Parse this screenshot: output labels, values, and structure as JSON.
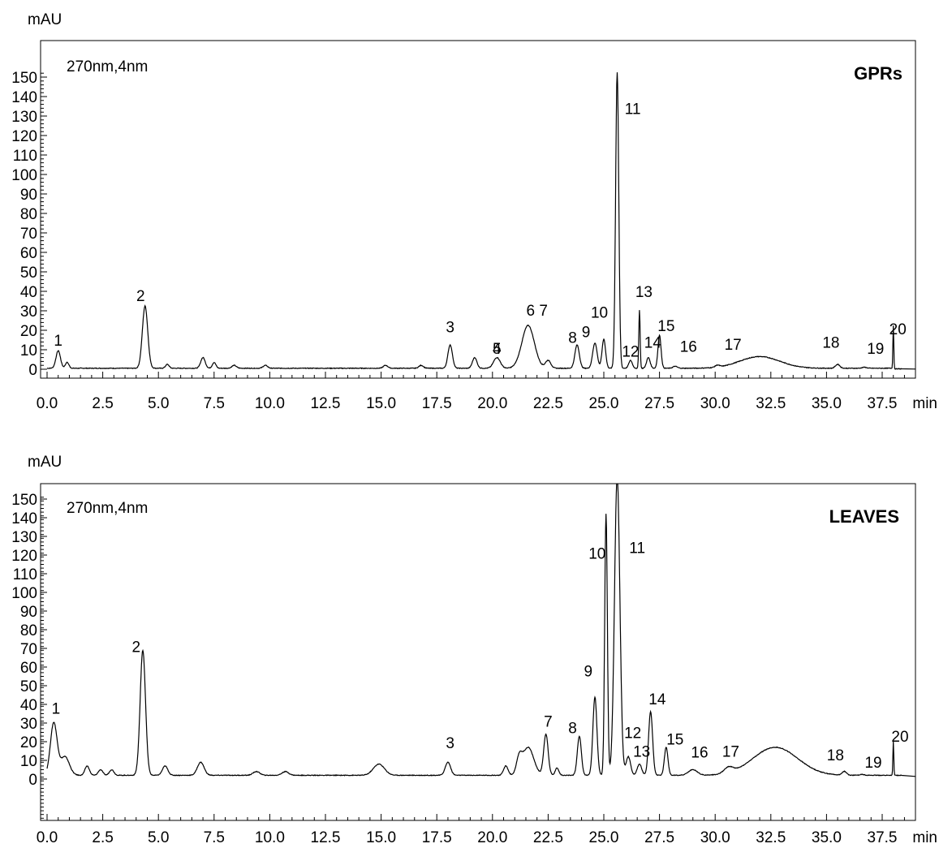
{
  "chart_data": [
    {
      "type": "line",
      "title": "GPRs",
      "annotation": "270nm,4nm",
      "ylabel": "mAU",
      "xlabel": "min",
      "xlim": [
        0,
        39
      ],
      "ylim": [
        0,
        152
      ],
      "grid": false,
      "x_ticks": [
        "0.0",
        "2.5",
        "5.0",
        "7.5",
        "10.0",
        "12.5",
        "15.0",
        "17.5",
        "20.0",
        "22.5",
        "25.0",
        "27.5",
        "30.0",
        "32.5",
        "35.0",
        "37.5"
      ],
      "y_ticks": [
        "0",
        "10",
        "20",
        "30",
        "40",
        "50",
        "60",
        "70",
        "80",
        "90",
        "100",
        "110",
        "120",
        "130",
        "140",
        "150"
      ],
      "baseline": 0.5,
      "peaks": [
        {
          "label": "1",
          "x": 0.5,
          "y": 9,
          "w": 0.1,
          "label_x": 0.5,
          "label_y": 12
        },
        {
          "label": "",
          "x": 0.9,
          "y": 3,
          "w": 0.08
        },
        {
          "label": "2",
          "x": 4.4,
          "y": 32,
          "w": 0.12,
          "label_x": 4.2,
          "label_y": 35
        },
        {
          "label": "",
          "x": 5.4,
          "y": 2,
          "w": 0.08
        },
        {
          "label": "",
          "x": 7.0,
          "y": 5.5,
          "w": 0.1
        },
        {
          "label": "",
          "x": 7.5,
          "y": 3,
          "w": 0.08
        },
        {
          "label": "",
          "x": 8.4,
          "y": 1.5,
          "w": 0.1
        },
        {
          "label": "",
          "x": 9.8,
          "y": 1.5,
          "w": 0.1
        },
        {
          "label": "",
          "x": 15.2,
          "y": 1.5,
          "w": 0.1
        },
        {
          "label": "",
          "x": 16.8,
          "y": 1.5,
          "w": 0.1
        },
        {
          "label": "3",
          "x": 18.1,
          "y": 12,
          "w": 0.1,
          "label_x": 18.1,
          "label_y": 19
        },
        {
          "label": "4",
          "x": 19.2,
          "y": 5.5,
          "w": 0.1,
          "label_x": 20.2,
          "label_y": 8
        },
        {
          "label": "5",
          "x": 20.2,
          "y": 5.5,
          "w": 0.15,
          "label_x": 20.2,
          "label_y": 8
        },
        {
          "label": "6 7",
          "x": 21.6,
          "y": 22,
          "w": 0.28,
          "label_x": 22.0,
          "label_y": 27.5
        },
        {
          "label": "",
          "x": 22.5,
          "y": 4,
          "w": 0.12
        },
        {
          "label": "8",
          "x": 23.8,
          "y": 12,
          "w": 0.1,
          "label_x": 23.6,
          "label_y": 13.5
        },
        {
          "label": "9",
          "x": 24.6,
          "y": 13,
          "w": 0.1,
          "label_x": 24.2,
          "label_y": 16.5
        },
        {
          "label": "10",
          "x": 25.0,
          "y": 15,
          "w": 0.08,
          "label_x": 24.8,
          "label_y": 26.5
        },
        {
          "label": "11",
          "x": 25.6,
          "y": 152,
          "w": 0.07,
          "label_x": 26.3,
          "label_y": 131
        },
        {
          "label": "12",
          "x": 26.2,
          "y": 4,
          "w": 0.08,
          "label_x": 26.2,
          "label_y": 6.5
        },
        {
          "label": "13",
          "x": 26.6,
          "y": 30,
          "w": 0.03,
          "label_x": 26.8,
          "label_y": 37
        },
        {
          "label": "14",
          "x": 27.0,
          "y": 5.5,
          "w": 0.08,
          "label_x": 27.2,
          "label_y": 11
        },
        {
          "label": "15",
          "x": 27.5,
          "y": 17,
          "w": 0.07,
          "label_x": 27.8,
          "label_y": 19.5
        },
        {
          "label": "16",
          "x": 28.2,
          "y": 1,
          "w": 0.1,
          "label_x": 28.8,
          "label_y": 9
        },
        {
          "label": "17",
          "x": 30.1,
          "y": 1,
          "w": 0.1,
          "label_x": 30.8,
          "label_y": 10
        },
        {
          "label": "",
          "x": 32.0,
          "y": 6,
          "w": 0.9
        },
        {
          "label": "18",
          "x": 35.5,
          "y": 2,
          "w": 0.1,
          "label_x": 35.2,
          "label_y": 11
        },
        {
          "label": "19",
          "x": 36.7,
          "y": 0.5,
          "w": 0.1,
          "label_x": 37.2,
          "label_y": 8
        },
        {
          "label": "20",
          "x": 38.0,
          "y": 22,
          "w": 0.02,
          "label_x": 38.2,
          "label_y": 18
        }
      ]
    },
    {
      "type": "line",
      "title": "LEAVES",
      "annotation": "270nm,4nm",
      "ylabel": "mAU",
      "xlabel": "min",
      "xlim": [
        0,
        39
      ],
      "ylim": [
        -25,
        152
      ],
      "grid": false,
      "x_ticks": [
        "0.0",
        "2.5",
        "5.0",
        "7.5",
        "10.0",
        "12.5",
        "15.0",
        "17.5",
        "20.0",
        "22.5",
        "25.0",
        "27.5",
        "30.0",
        "32.5",
        "35.0",
        "37.5"
      ],
      "y_ticks": [
        "0",
        "10",
        "20",
        "30",
        "40",
        "50",
        "60",
        "70",
        "80",
        "90",
        "100",
        "110",
        "120",
        "130",
        "140",
        "150"
      ],
      "baseline": 2,
      "peaks": [
        {
          "label": "1",
          "x": 0.3,
          "y": 28,
          "w": 0.15,
          "label_x": 0.4,
          "label_y": 35
        },
        {
          "label": "",
          "x": 0.8,
          "y": 10,
          "w": 0.2
        },
        {
          "label": "",
          "x": 1.8,
          "y": 5,
          "w": 0.1
        },
        {
          "label": "",
          "x": 2.4,
          "y": 3,
          "w": 0.1
        },
        {
          "label": "",
          "x": 2.9,
          "y": 3,
          "w": 0.1
        },
        {
          "label": "2",
          "x": 4.3,
          "y": 67,
          "w": 0.12,
          "label_x": 4.0,
          "label_y": 68
        },
        {
          "label": "",
          "x": 5.3,
          "y": 5,
          "w": 0.12
        },
        {
          "label": "",
          "x": 6.9,
          "y": 7,
          "w": 0.15
        },
        {
          "label": "",
          "x": 9.4,
          "y": 2,
          "w": 0.15
        },
        {
          "label": "",
          "x": 10.7,
          "y": 2,
          "w": 0.15
        },
        {
          "label": "",
          "x": 14.9,
          "y": 6,
          "w": 0.25
        },
        {
          "label": "3",
          "x": 18.0,
          "y": 7,
          "w": 0.12,
          "label_x": 18.1,
          "label_y": 16.5
        },
        {
          "label": "",
          "x": 20.6,
          "y": 5,
          "w": 0.1
        },
        {
          "label": "",
          "x": 21.2,
          "y": 8,
          "w": 0.12
        },
        {
          "label": "",
          "x": 21.6,
          "y": 15,
          "w": 0.25
        },
        {
          "label": "7",
          "x": 22.4,
          "y": 22,
          "w": 0.1,
          "label_x": 22.5,
          "label_y": 28
        },
        {
          "label": "",
          "x": 22.9,
          "y": 4,
          "w": 0.08
        },
        {
          "label": "8",
          "x": 23.9,
          "y": 21,
          "w": 0.09,
          "label_x": 23.6,
          "label_y": 24.5
        },
        {
          "label": "9",
          "x": 24.6,
          "y": 42,
          "w": 0.09,
          "label_x": 24.3,
          "label_y": 55
        },
        {
          "label": "10",
          "x": 25.1,
          "y": 140,
          "w": 0.06,
          "label_x": 24.7,
          "label_y": 118
        },
        {
          "label": "11",
          "x": 25.6,
          "y": 160,
          "w": 0.12,
          "label_x": 26.5,
          "label_y": 121
        },
        {
          "label": "12",
          "x": 26.1,
          "y": 10,
          "w": 0.1,
          "label_x": 26.3,
          "label_y": 22
        },
        {
          "label": "13",
          "x": 26.6,
          "y": 6,
          "w": 0.1,
          "label_x": 26.7,
          "label_y": 12
        },
        {
          "label": "14",
          "x": 27.1,
          "y": 34,
          "w": 0.09,
          "label_x": 27.4,
          "label_y": 40
        },
        {
          "label": "15",
          "x": 27.8,
          "y": 15,
          "w": 0.08,
          "label_x": 28.2,
          "label_y": 18.5
        },
        {
          "label": "16",
          "x": 29.0,
          "y": 3,
          "w": 0.2,
          "label_x": 29.3,
          "label_y": 11.5
        },
        {
          "label": "17",
          "x": 30.6,
          "y": 3,
          "w": 0.2,
          "label_x": 30.7,
          "label_y": 12
        },
        {
          "label": "",
          "x": 32.7,
          "y": 15,
          "w": 1.0
        },
        {
          "label": "18",
          "x": 35.8,
          "y": 2,
          "w": 0.1,
          "label_x": 35.4,
          "label_y": 10
        },
        {
          "label": "19",
          "x": 36.6,
          "y": 0.5,
          "w": 0.1,
          "label_x": 37.1,
          "label_y": 6
        },
        {
          "label": "20",
          "x": 38.0,
          "y": 18,
          "w": 0.02,
          "label_x": 38.3,
          "label_y": 20
        }
      ]
    }
  ]
}
